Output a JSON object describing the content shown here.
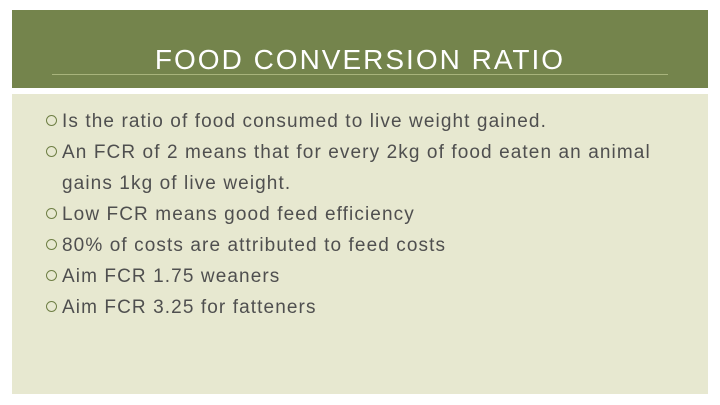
{
  "slide": {
    "title": "FOOD CONVERSION RATIO",
    "bullets": [
      "Is the ratio of food consumed to live weight gained.",
      "An FCR of 2 means that for every 2kg of food eaten an animal gains 1kg of live weight.",
      "Low FCR means good feed efficiency",
      "80% of costs are attributed to feed costs",
      "Aim FCR 1.75 weaners",
      "Aim FCR 3.25 for fatteners"
    ],
    "bullet_icon": "hollow-circle-icon",
    "colors": {
      "title_band": "#74844c",
      "body_panel": "#e7e8d0",
      "body_text": "#4f4f4f",
      "bullet": "#6f7f45"
    }
  }
}
